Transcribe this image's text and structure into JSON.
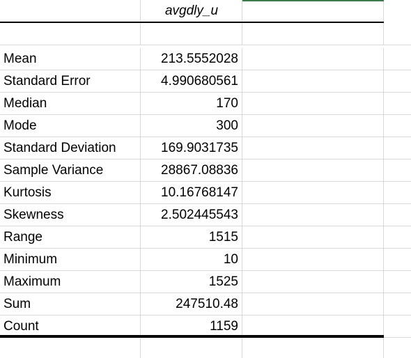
{
  "header": {
    "column_title": "avgdly_u"
  },
  "stats": [
    {
      "label": "Mean",
      "value": "213.5552028"
    },
    {
      "label": "Standard Error",
      "value": "4.990680561"
    },
    {
      "label": "Median",
      "value": "170"
    },
    {
      "label": "Mode",
      "value": "300"
    },
    {
      "label": "Standard Deviation",
      "value": "169.9031735"
    },
    {
      "label": "Sample Variance",
      "value": "28867.08836"
    },
    {
      "label": "Kurtosis",
      "value": "10.16768147"
    },
    {
      "label": "Skewness",
      "value": "2.502445543"
    },
    {
      "label": "Range",
      "value": "1515"
    },
    {
      "label": "Minimum",
      "value": "10"
    },
    {
      "label": "Maximum",
      "value": "1525"
    },
    {
      "label": "Sum",
      "value": "247510.48"
    },
    {
      "label": "Count",
      "value": "1159"
    }
  ],
  "colors": {
    "grid": "#d9d9d9",
    "rule": "#000000",
    "active_cell_edge": "#3b7a4b"
  }
}
